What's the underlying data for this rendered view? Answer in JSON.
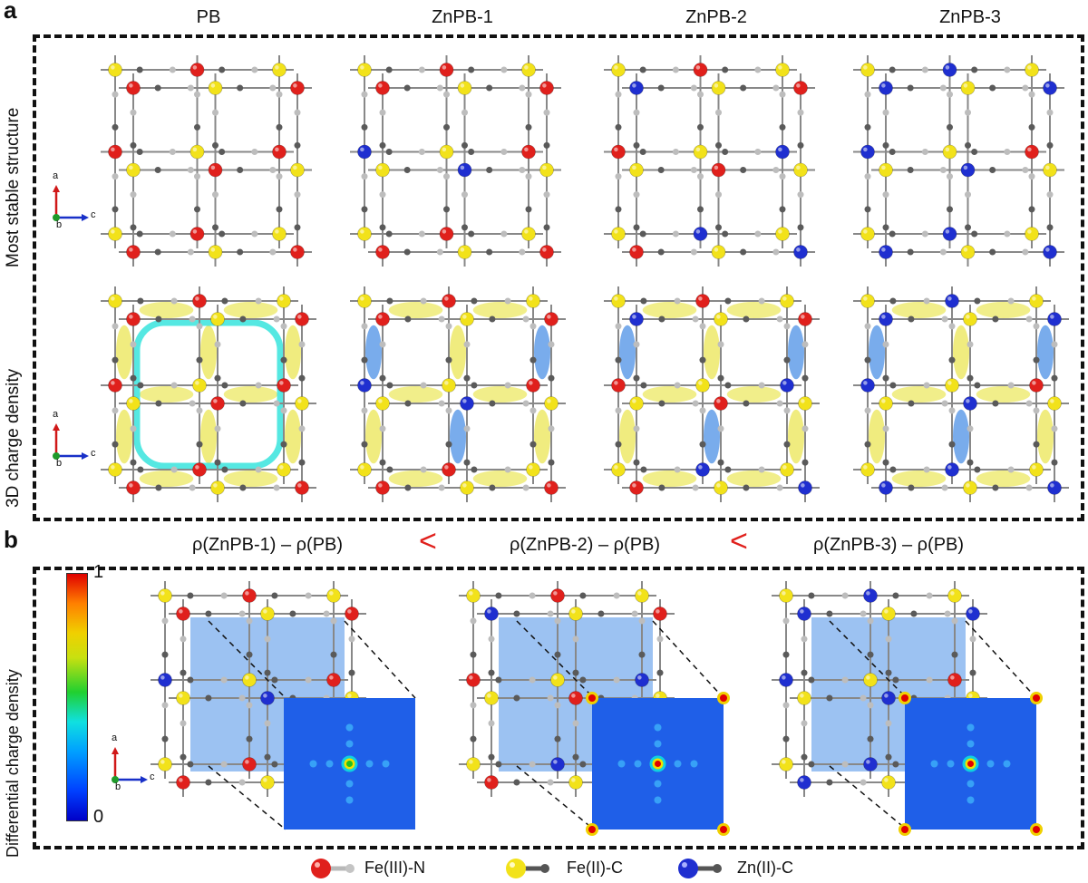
{
  "panel_a": {
    "letter": "a",
    "columns": [
      "PB",
      "ZnPB-1",
      "ZnPB-2",
      "ZnPB-3"
    ],
    "rows": [
      "Most stable structure",
      "3D charge density"
    ]
  },
  "panel_b": {
    "letter": "b",
    "formulas": [
      "ρ(ZnPB-1) – ρ(PB)",
      "ρ(ZnPB-2) – ρ(PB)",
      "ρ(ZnPB-3) – ρ(PB)"
    ],
    "comparator": "<",
    "row_label": "Differential charge density",
    "colorbar": {
      "max": "1",
      "min": "0"
    }
  },
  "axes": {
    "a": "a",
    "b": "b",
    "c": "c"
  },
  "legend": [
    {
      "label": "Fe(III)-N",
      "ball_color": "#e0201c",
      "stick_color": "#b8b8b8"
    },
    {
      "label": "Fe(II)-C",
      "ball_color": "#f2e21a",
      "stick_color": "#555555"
    },
    {
      "label": "Zn(II)-C",
      "ball_color": "#1f2fd0",
      "stick_color": "#555555"
    }
  ],
  "colors": {
    "fe3": "#e0201c",
    "fe2": "#f2e21a",
    "zn": "#1f2fd0",
    "n": "#bdbdbd",
    "c": "#5a5a5a",
    "density_yellow": "#e6e02a",
    "density_blue": "#1f74e0",
    "density_cyan": "#1ce0d8",
    "map_bg": "#1f5fe8"
  }
}
